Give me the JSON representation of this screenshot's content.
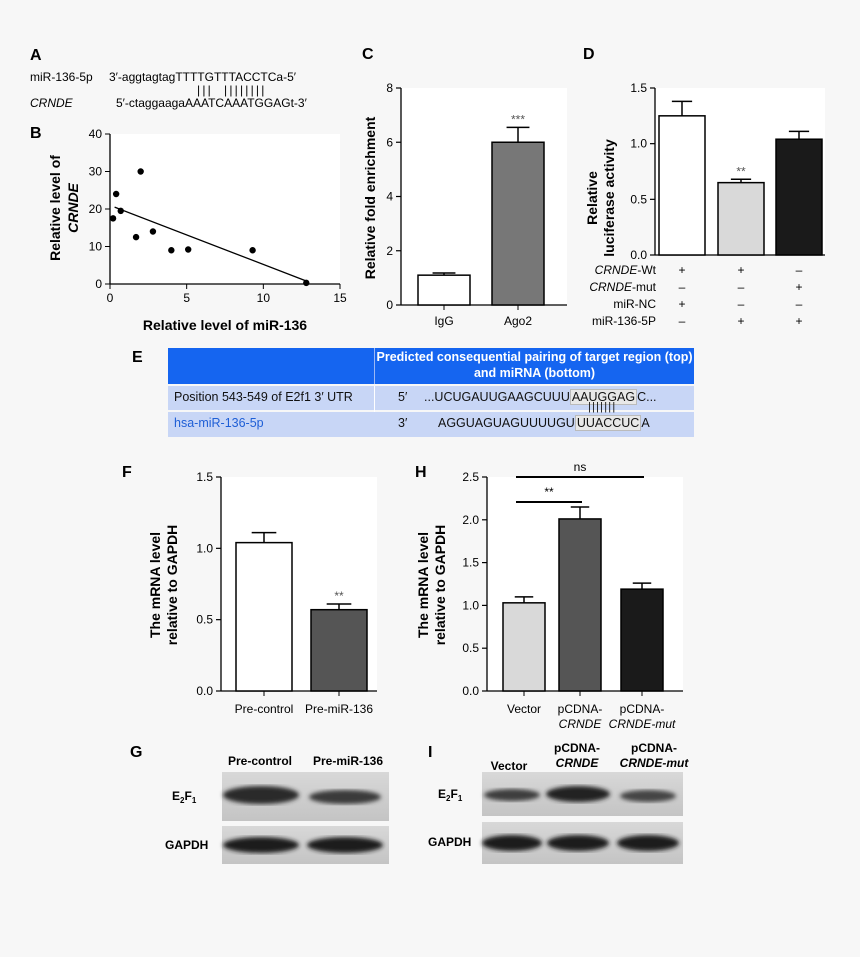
{
  "panel_letters": {
    "A": "A",
    "B": "B",
    "C": "C",
    "D": "D",
    "E": "E",
    "F": "F",
    "G": "G",
    "H": "H",
    "I": "I"
  },
  "panelA": {
    "row1_label": "miR-136-5p",
    "row1_seq_prefix": "3′-aggtagtag",
    "row1_seq_match": "TTTTGTTTACCTC",
    "row1_seq_suffix": "a-5′",
    "row2_label": "CRNDE",
    "row2_seq_prefix": "5′-ctaggaaga",
    "row2_seq_match": "AAATCAAATGGAG",
    "row2_seq_suffix": "t-3′",
    "pairing_marks": "|||  ||||||||"
  },
  "panelE": {
    "header_right": "Predicted consequential pairing of target region (top) and miRNA (bottom)",
    "row1_left": "Position 543-549 of E2f1 3′ UTR",
    "row1_end": "5′",
    "row1_seq": "...UCUGAUUGAAGCUUU",
    "row1_seq_hi": "AAUGGAG",
    "row1_seq_tail": "C...",
    "row2_left": "hsa-miR-136-5p",
    "row2_end": "3′",
    "row2_seq": "AGGUAGUAGUUUUGU",
    "row2_seq_hi": "UUACCUC",
    "row2_seq_tail": "A",
    "pairing_marks": "|||||||",
    "colors": {
      "header": "#1565f0",
      "rows": "#c8d6f6",
      "mirna_text": "#1f5fd6"
    }
  },
  "chart_data": [
    {
      "panel": "B",
      "type": "scatter",
      "xlabel": "Relative level of miR-136",
      "ylabel_line1": "Relative level of",
      "ylabel_line2": "CRNDE",
      "xlim": [
        0,
        15
      ],
      "ylim": [
        0,
        40
      ],
      "xticks": [
        0,
        5,
        10,
        15
      ],
      "yticks": [
        0,
        10,
        20,
        30,
        40
      ],
      "points": [
        {
          "x": 0.2,
          "y": 17.5
        },
        {
          "x": 0.4,
          "y": 24
        },
        {
          "x": 0.7,
          "y": 19.5
        },
        {
          "x": 1.7,
          "y": 12.5
        },
        {
          "x": 2.0,
          "y": 30
        },
        {
          "x": 2.8,
          "y": 14
        },
        {
          "x": 4.0,
          "y": 9
        },
        {
          "x": 5.1,
          "y": 9.2
        },
        {
          "x": 9.3,
          "y": 9
        },
        {
          "x": 12.8,
          "y": 0.3
        }
      ],
      "fit_line": [
        {
          "x": 0.3,
          "y": 20.5
        },
        {
          "x": 12.8,
          "y": 0.8
        }
      ]
    },
    {
      "panel": "C",
      "type": "bar",
      "ylabel": "Relative fold enrichment",
      "ylim": [
        0,
        8
      ],
      "yticks": [
        0,
        2,
        4,
        6,
        8
      ],
      "categories": [
        "IgG",
        "Ago2"
      ],
      "values": [
        1.1,
        6.0
      ],
      "errors": [
        0.08,
        0.55
      ],
      "fills": [
        "#ffffff",
        "#777777"
      ],
      "significance": [
        "",
        "***"
      ]
    },
    {
      "panel": "D",
      "type": "bar",
      "ylabel_line1": "Relative",
      "ylabel_line2": "luciferase activity",
      "ylim": [
        0,
        1.5
      ],
      "yticks": [
        "0.0",
        "0.5",
        "1.0",
        "1.5"
      ],
      "values": [
        1.25,
        0.65,
        1.04
      ],
      "errors": [
        0.13,
        0.03,
        0.07
      ],
      "fills": [
        "#ffffff",
        "#d9d9d9",
        "#1a1a1a"
      ],
      "significance": [
        "",
        "**",
        ""
      ],
      "conditions": [
        {
          "label_em": "CRNDE",
          "label_rest": "-Wt",
          "marks": [
            "+",
            "+",
            "–"
          ]
        },
        {
          "label_em": "CRNDE",
          "label_rest": "-mut",
          "marks": [
            "–",
            "–",
            "+"
          ]
        },
        {
          "label_em": "",
          "label_rest": "miR-NC",
          "marks": [
            "+",
            "–",
            "–"
          ]
        },
        {
          "label_em": "",
          "label_rest": "miR-136-5P",
          "marks": [
            "–",
            "+",
            "+"
          ]
        }
      ]
    },
    {
      "panel": "F",
      "type": "bar",
      "ylabel_line1": "The mRNA level",
      "ylabel_line2": "relative to GAPDH",
      "ylim": [
        0,
        1.5
      ],
      "yticks": [
        "0.0",
        "0.5",
        "1.0",
        "1.5"
      ],
      "categories": [
        "Pre-control",
        "Pre-miR-136"
      ],
      "values": [
        1.04,
        0.57
      ],
      "errors": [
        0.07,
        0.04
      ],
      "fills": [
        "#ffffff",
        "#555555"
      ],
      "significance": [
        "",
        "**"
      ]
    },
    {
      "panel": "H",
      "type": "bar",
      "ylabel_line1": "The mRNA level",
      "ylabel_line2": "relative to GAPDH",
      "ylim": [
        0,
        2.5
      ],
      "yticks": [
        "0.0",
        "0.5",
        "1.0",
        "1.5",
        "2.0",
        "2.5"
      ],
      "categories": [
        {
          "l1": "Vector",
          "l2": ""
        },
        {
          "l1": "pCDNA-",
          "l2": "CRNDE"
        },
        {
          "l1": "pCDNA-",
          "l2": "CRNDE-mut"
        }
      ],
      "values": [
        1.03,
        2.01,
        1.19
      ],
      "errors": [
        0.07,
        0.14,
        0.07
      ],
      "fills": [
        "#d9d9d9",
        "#555555",
        "#1a1a1a"
      ],
      "brackets": [
        {
          "from": 0,
          "to": 1,
          "label": "**"
        },
        {
          "from": 0,
          "to": 2,
          "label": "ns"
        }
      ]
    }
  ],
  "panelG": {
    "columns": [
      "Pre-control",
      "Pre-miR-136"
    ],
    "row1_main": "E",
    "row1_sub": "2",
    "row1_main2": "F",
    "row1_sub2": "1",
    "row2": "GAPDH"
  },
  "panelI": {
    "col1": "Vector",
    "col2_l1": "pCDNA-",
    "col2_l2": "CRNDE",
    "col3_l1": "pCDNA-",
    "col3_l2": "CRNDE-mut",
    "row1_main": "E",
    "row1_sub": "2",
    "row1_main2": "F",
    "row1_sub2": "1",
    "row2": "GAPDH"
  }
}
